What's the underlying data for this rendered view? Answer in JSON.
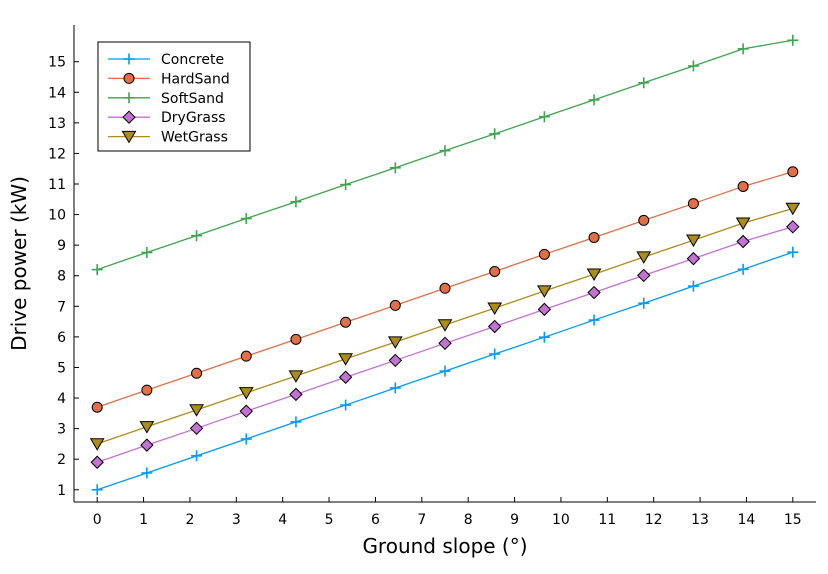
{
  "chart_data": {
    "type": "line",
    "title": "",
    "xlabel": "Ground slope (°)",
    "ylabel": "Drive power (kW)",
    "xlim": [
      -0.5,
      15.5
    ],
    "ylim": [
      0.6,
      16.2
    ],
    "xticks": [
      0,
      1,
      2,
      3,
      4,
      5,
      6,
      7,
      8,
      9,
      10,
      11,
      12,
      13,
      14,
      15
    ],
    "yticks": [
      1,
      2,
      3,
      4,
      5,
      6,
      7,
      8,
      9,
      10,
      11,
      12,
      13,
      14,
      15
    ],
    "grid": false,
    "legend_position": "top-left",
    "x": [
      0,
      1.0714,
      2.1429,
      3.2143,
      4.2857,
      5.3571,
      6.4286,
      7.5,
      8.5714,
      9.6429,
      10.7143,
      11.7857,
      12.8571,
      13.9286,
      15
    ],
    "series": [
      {
        "name": "Concrete",
        "color": "#009AFA",
        "marker": "plus",
        "values": [
          1.0,
          1.55,
          2.11,
          2.66,
          3.22,
          3.77,
          4.33,
          4.88,
          5.44,
          5.99,
          6.55,
          7.1,
          7.66,
          8.21,
          8.77
        ]
      },
      {
        "name": "HardSand",
        "color": "#E26F46",
        "marker": "circle",
        "values": [
          3.7,
          4.26,
          4.81,
          5.37,
          5.92,
          6.48,
          7.03,
          7.59,
          8.14,
          8.7,
          9.25,
          9.81,
          10.36,
          10.92,
          11.4
        ]
      },
      {
        "name": "SoftSand",
        "color": "#3EA44E",
        "marker": "plus",
        "values": [
          8.2,
          8.76,
          9.31,
          9.87,
          10.42,
          10.98,
          11.53,
          12.09,
          12.64,
          13.2,
          13.75,
          14.31,
          14.86,
          15.42,
          15.7
        ]
      },
      {
        "name": "DryGrass",
        "color": "#C371D2",
        "marker": "diamond",
        "values": [
          1.9,
          2.46,
          3.01,
          3.57,
          4.12,
          4.68,
          5.23,
          5.79,
          6.34,
          6.9,
          7.45,
          8.01,
          8.56,
          9.12,
          9.6
        ]
      },
      {
        "name": "WetGrass",
        "color": "#AC8D18",
        "marker": "triangle-down",
        "values": [
          2.5,
          3.06,
          3.61,
          4.17,
          4.72,
          5.28,
          5.83,
          6.39,
          6.94,
          7.5,
          8.05,
          8.61,
          9.16,
          9.72,
          10.2
        ]
      }
    ]
  }
}
